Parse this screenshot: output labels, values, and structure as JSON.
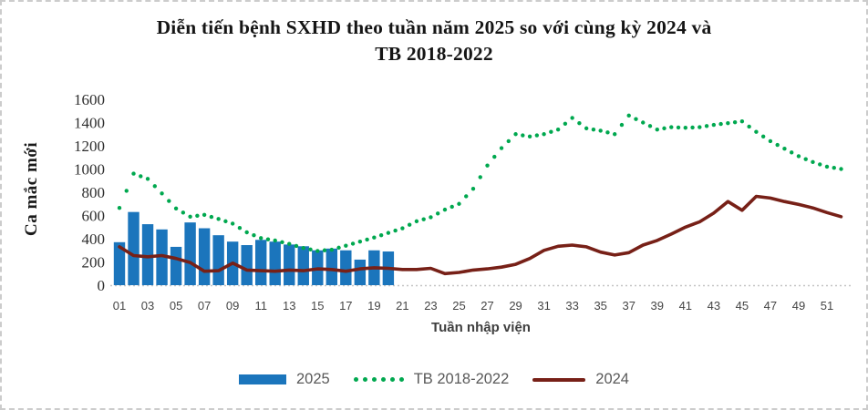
{
  "header": {
    "title_line1": "Diễn tiến bệnh SXHD theo tuần năm 2025 so với cùng kỳ 2024 và",
    "title_line2": "TB 2018-2022"
  },
  "legend": {
    "items": [
      {
        "label": "2025",
        "color": "#1B75BC",
        "marker": "bar"
      },
      {
        "label": "TB 2018-2022",
        "color": "#00A84F",
        "marker": "dots"
      },
      {
        "label": "2024",
        "color": "#772017",
        "marker": "line"
      }
    ]
  },
  "chart_data": {
    "type": "bar",
    "subtype": "combo-bar-and-lines",
    "title": "Diễn tiến bệnh SXHD theo tuần năm 2025 so với cùng kỳ 2024 và TB 2018-2022",
    "xlabel": "Tuần nhập viện",
    "ylabel": "Ca mắc mới",
    "ylim": [
      0,
      1600
    ],
    "yticks": [
      0,
      200,
      400,
      600,
      800,
      1000,
      1200,
      1400,
      1600
    ],
    "xtick_labels": [
      "01",
      "03",
      "05",
      "07",
      "09",
      "11",
      "13",
      "15",
      "17",
      "19",
      "21",
      "23",
      "25",
      "27",
      "29",
      "31",
      "33",
      "35",
      "37",
      "39",
      "41",
      "43",
      "45",
      "47",
      "49",
      "51"
    ],
    "weeks_total": 52,
    "grid": false,
    "legend_position": "bottom",
    "series": [
      {
        "name": "2025",
        "type": "bar",
        "color": "#1B75BC",
        "start_week": 1,
        "values": [
          370,
          630,
          525,
          480,
          330,
          540,
          490,
          430,
          375,
          345,
          390,
          375,
          350,
          335,
          300,
          315,
          300,
          220,
          300,
          290
        ]
      },
      {
        "name": "TB 2018-2022",
        "type": "dotted-line",
        "color": "#00A84F",
        "start_week": 1,
        "values": [
          665,
          960,
          915,
          790,
          660,
          590,
          605,
          570,
          530,
          455,
          405,
          385,
          355,
          320,
          295,
          305,
          340,
          375,
          410,
          450,
          490,
          550,
          585,
          650,
          700,
          830,
          1030,
          1180,
          1300,
          1280,
          1300,
          1340,
          1440,
          1350,
          1330,
          1300,
          1460,
          1400,
          1340,
          1360,
          1355,
          1360,
          1380,
          1395,
          1410,
          1320,
          1240,
          1175,
          1110,
          1060,
          1020,
          1000
        ]
      },
      {
        "name": "2024",
        "type": "line",
        "color": "#772017",
        "start_week": 1,
        "values": [
          330,
          255,
          245,
          255,
          230,
          195,
          120,
          125,
          190,
          130,
          125,
          120,
          130,
          125,
          140,
          135,
          120,
          140,
          150,
          145,
          135,
          135,
          145,
          100,
          110,
          130,
          140,
          155,
          180,
          230,
          300,
          335,
          345,
          330,
          285,
          260,
          280,
          345,
          385,
          440,
          500,
          545,
          620,
          720,
          645,
          765,
          750,
          720,
          695,
          665,
          625,
          590
        ]
      }
    ]
  }
}
